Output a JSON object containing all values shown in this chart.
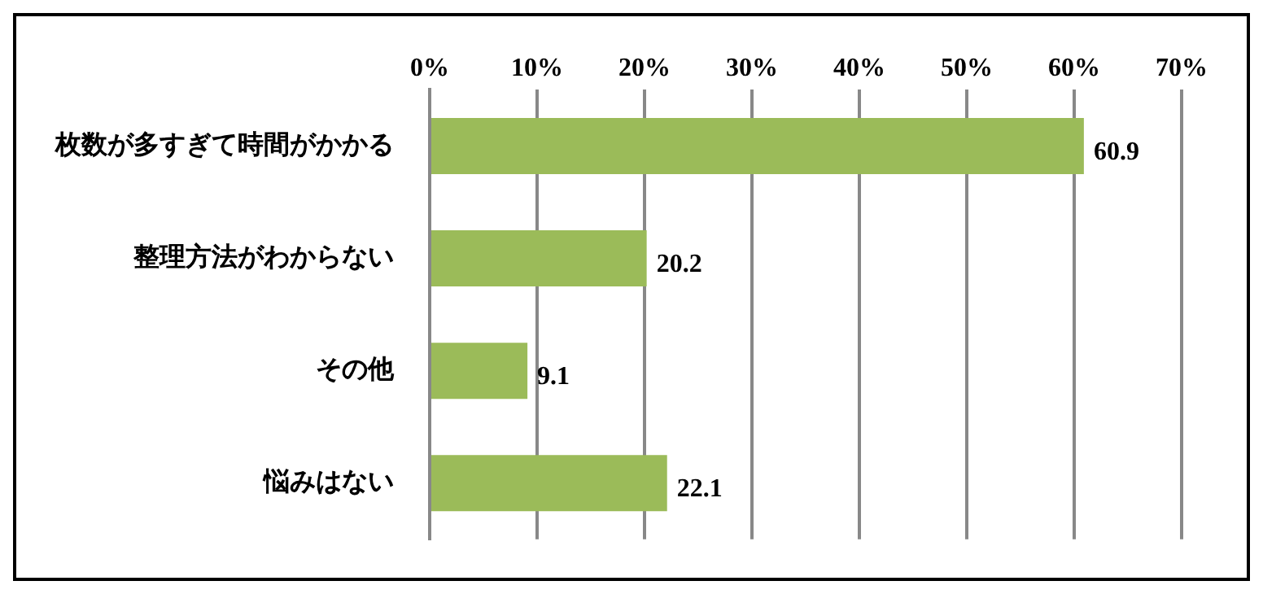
{
  "chart_data": {
    "type": "bar",
    "orientation": "horizontal",
    "categories": [
      "枚数が多すぎて時間がかかる",
      "整理方法がわからない",
      "その他",
      "悩みはない"
    ],
    "values": [
      60.9,
      20.2,
      9.1,
      22.1
    ],
    "color": "#9bbb59",
    "xlim": [
      0,
      70
    ],
    "xticks": [
      {
        "value": 0,
        "label": "0%"
      },
      {
        "value": 10,
        "label": "10%"
      },
      {
        "value": 20,
        "label": "20%"
      },
      {
        "value": 30,
        "label": "30%"
      },
      {
        "value": 40,
        "label": "40%"
      },
      {
        "value": 50,
        "label": "50%"
      },
      {
        "value": 60,
        "label": "60%"
      },
      {
        "value": 70,
        "label": "70%"
      }
    ],
    "grid": "x",
    "data_labels": true,
    "legend": false
  }
}
